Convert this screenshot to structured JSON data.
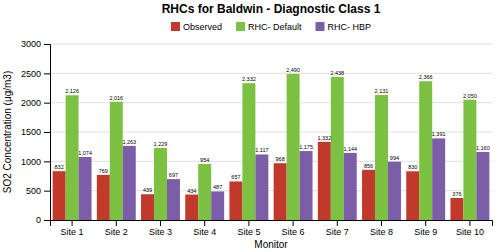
{
  "chart_data": {
    "type": "bar",
    "title": "RHCs for Baldwin - Diagnostic Class 1",
    "xlabel": "Monitor",
    "ylabel": "SO2 Concentration (μg/m3)",
    "categories": [
      "Site 1",
      "Site 2",
      "Site 3",
      "Site 4",
      "Site 5",
      "Site 6",
      "Site 7",
      "Site 8",
      "Site 9",
      "Site 10"
    ],
    "series": [
      {
        "name": "Observed",
        "color": "#c0392b",
        "values": [
          832,
          769,
          439,
          434,
          657,
          968,
          1332,
          856,
          830,
          376
        ],
        "value_labels": [
          "832",
          "769",
          "439",
          "434",
          "657",
          "968",
          "1,332",
          "856",
          "830",
          "376"
        ]
      },
      {
        "name": "RHC- Default",
        "color": "#7dc142",
        "values": [
          2126,
          2016,
          1229,
          954,
          2332,
          2490,
          2438,
          2131,
          2366,
          2050
        ],
        "value_labels": [
          "2,126",
          "2,016",
          "1,229",
          "954",
          "2,332",
          "2,490",
          "2,438",
          "2,131",
          "2,366",
          "2,050"
        ]
      },
      {
        "name": "RHC- HBP",
        "color": "#7b5ea7",
        "values": [
          1074,
          1263,
          697,
          487,
          1117,
          1175,
          1144,
          994,
          1391,
          1160
        ],
        "value_labels": [
          "1,074",
          "1,263",
          "697",
          "487",
          "1,117",
          "1,175",
          "1,144",
          "994",
          "1,391",
          "1,160"
        ]
      }
    ],
    "ylim": [
      0,
      3000
    ],
    "yticks": [
      0,
      500,
      1000,
      1500,
      2000,
      2500,
      3000
    ],
    "grid": true,
    "legend": "top",
    "data_labels": true
  }
}
